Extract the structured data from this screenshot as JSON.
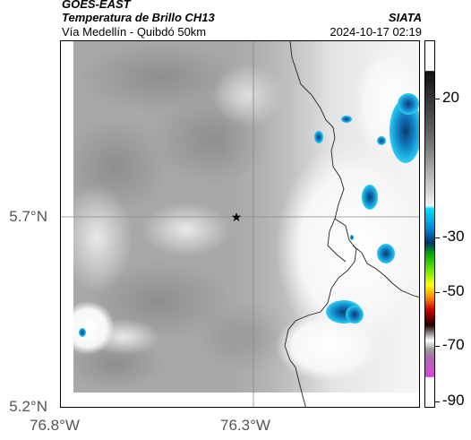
{
  "header": {
    "title_line1": "GOES-EAST",
    "title_line2": "Temperatura de Brillo CH13",
    "subtitle": "Vía Medellín - Quibdó 50km",
    "org": "SIATA",
    "datetime": "2024-10-17 02:19"
  },
  "map": {
    "lat_ticks": [
      "5.7°N",
      "5.2°N"
    ],
    "lon_ticks": [
      "76.8°W",
      "76.3°W"
    ],
    "marker_icon": "star-icon"
  },
  "colorbar": {
    "labels": [
      "20",
      "-30",
      "-50",
      "-70",
      "-90"
    ]
  }
}
